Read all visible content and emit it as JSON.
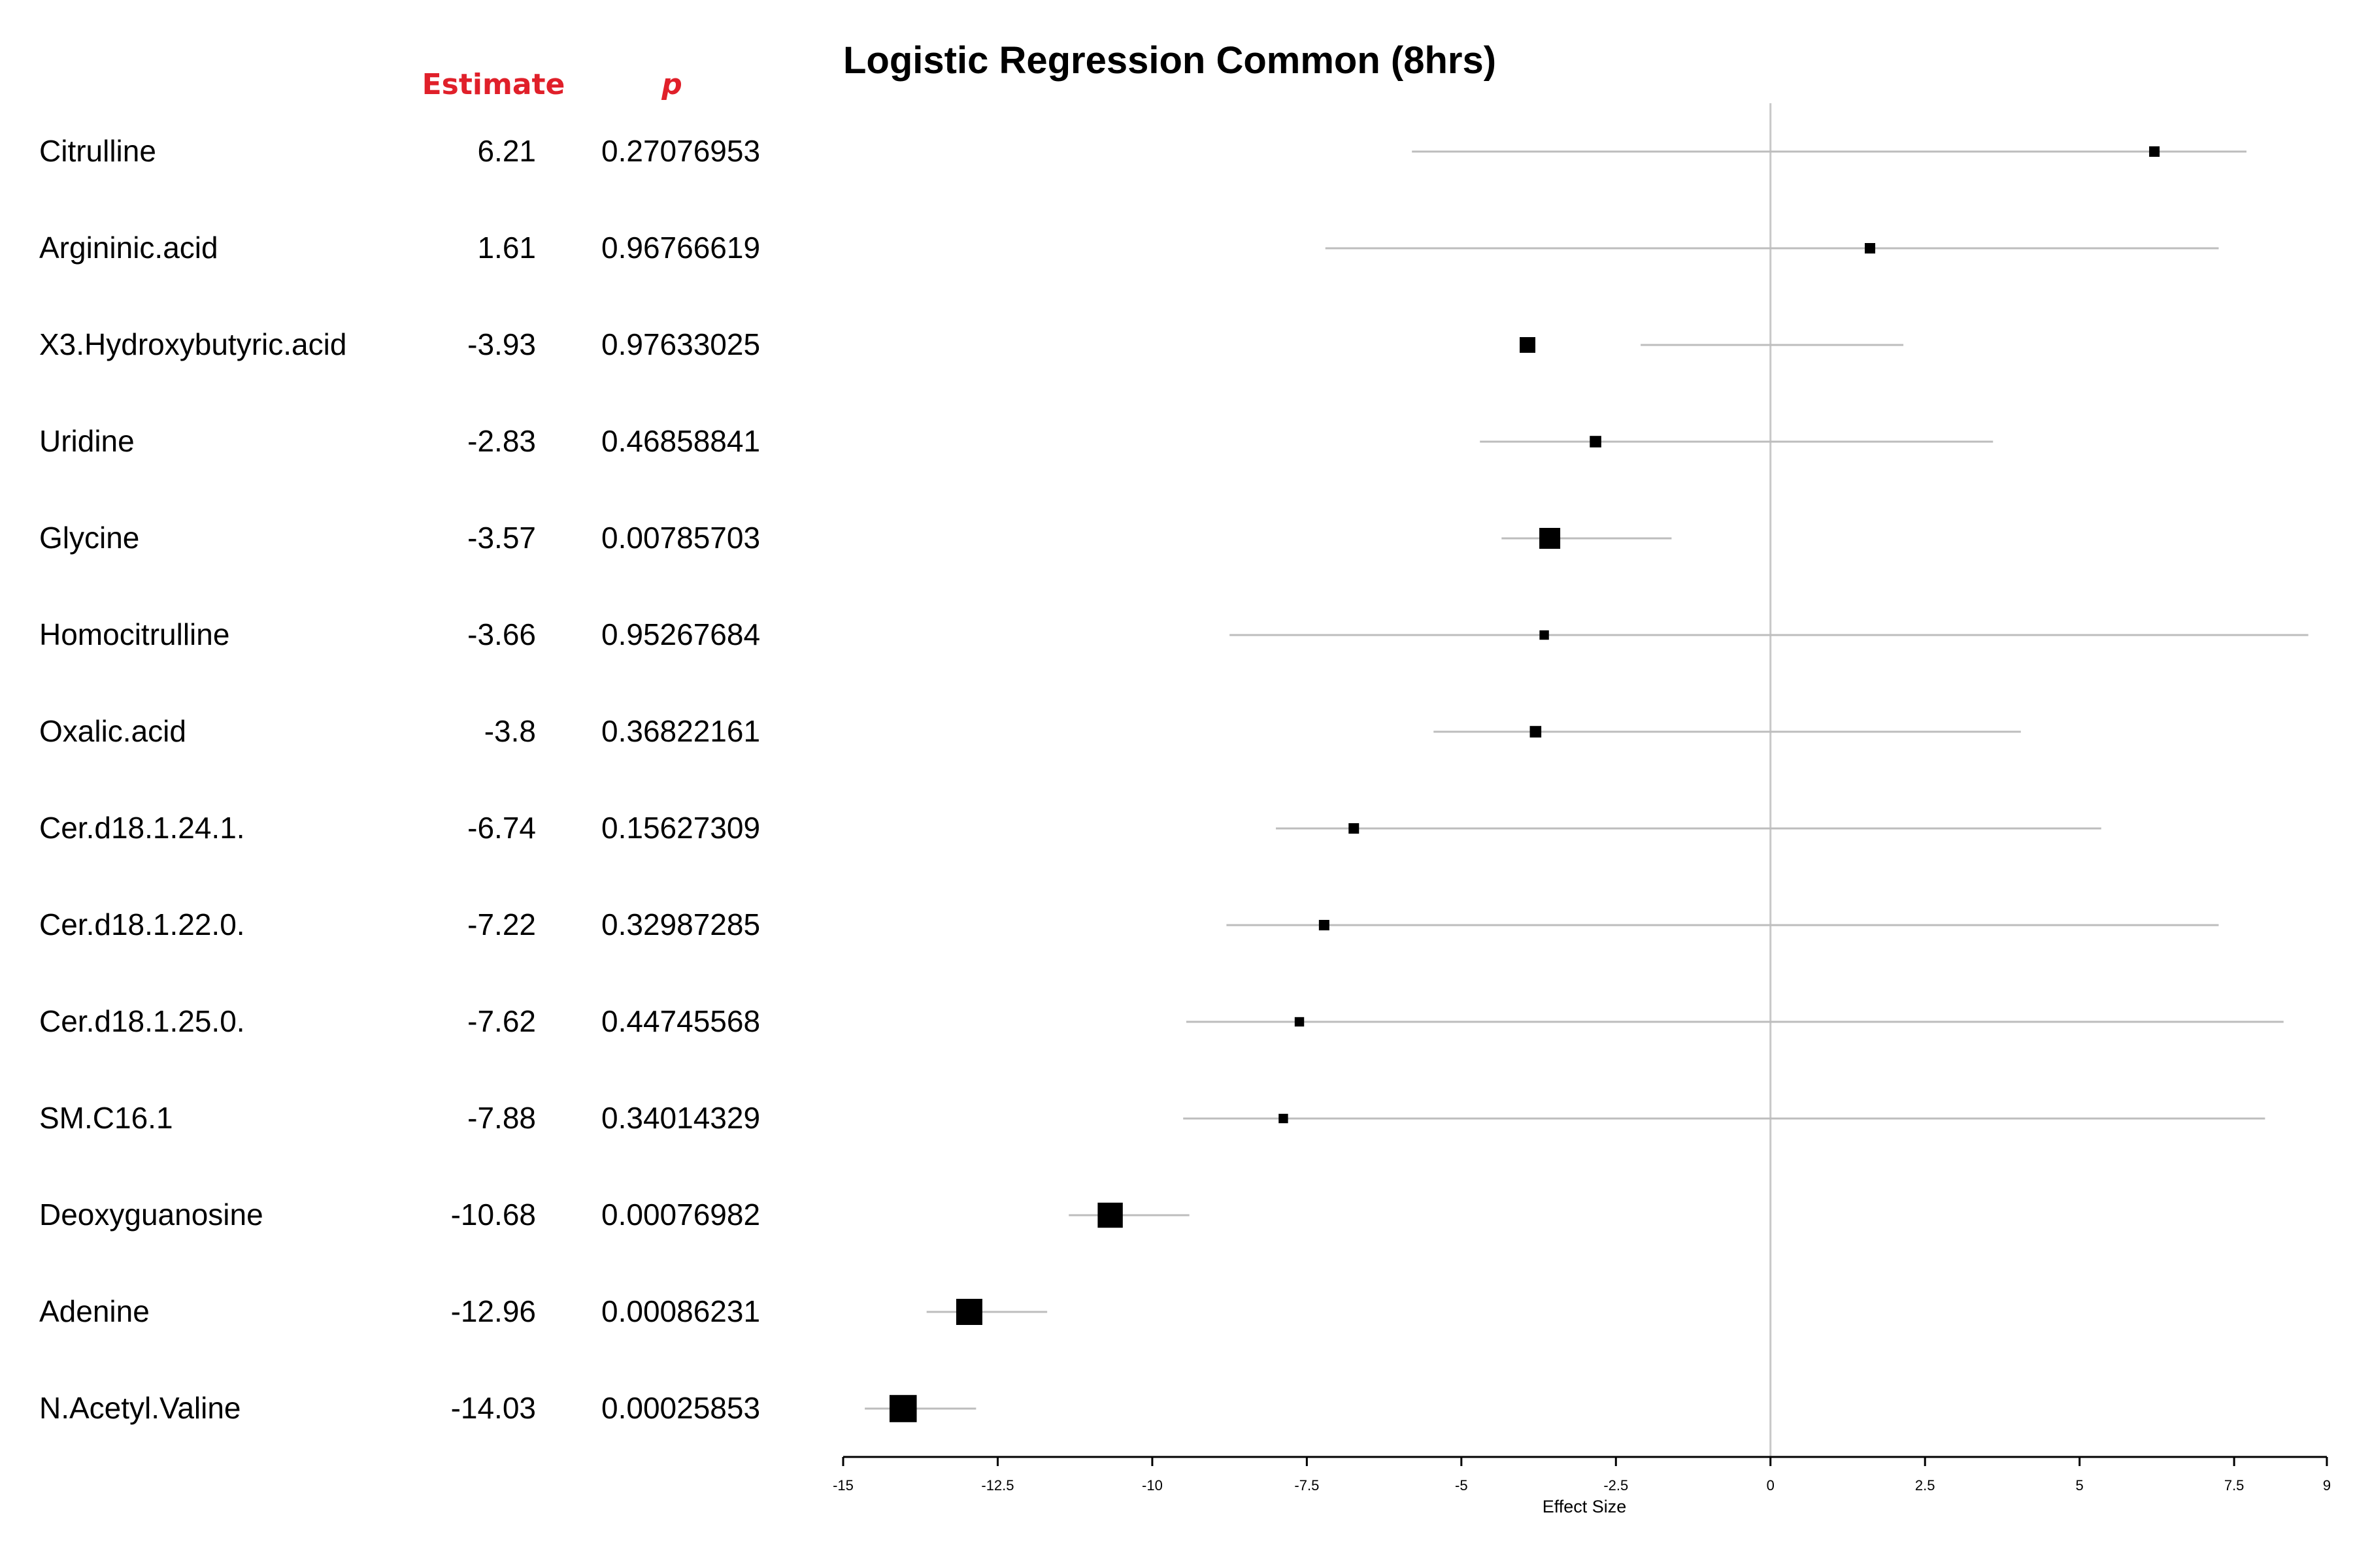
{
  "chart_data": {
    "type": "forest",
    "title": "Logistic Regression Common (8hrs)",
    "xlabel": "Effect Size",
    "xlim": [
      -15,
      9
    ],
    "reference_line": 0,
    "columns": {
      "estimate_header": "Estimate",
      "p_header": "p"
    },
    "x_ticks": [
      {
        "value": -15,
        "label": "-15"
      },
      {
        "value": -12.5,
        "label": "-12.5"
      },
      {
        "value": -10,
        "label": "-10"
      },
      {
        "value": -7.5,
        "label": "-7.5"
      },
      {
        "value": -5,
        "label": "-5"
      },
      {
        "value": -2.5,
        "label": "-2.5"
      },
      {
        "value": 0,
        "label": "0"
      },
      {
        "value": 2.5,
        "label": "2.5"
      },
      {
        "value": 5,
        "label": "5"
      },
      {
        "value": 7.5,
        "label": "7.5"
      },
      {
        "value": 9,
        "label": "9"
      }
    ],
    "rows": [
      {
        "name": "Citrulline",
        "estimate": 6.21,
        "estimate_label": "6.21",
        "p": "0.27076953",
        "ci_low": -5.8,
        "ci_high": 7.7,
        "weight": 1
      },
      {
        "name": "Argininic.acid",
        "estimate": 1.61,
        "estimate_label": "1.61",
        "p": "0.96766619",
        "ci_low": -7.2,
        "ci_high": 7.25,
        "weight": 1
      },
      {
        "name": "X3.Hydroxybutyric.acid",
        "estimate": -3.93,
        "estimate_label": "-3.93",
        "p": "0.97633025",
        "ci_low": -2.1,
        "ci_high": 2.15,
        "weight": 1.5
      },
      {
        "name": "Uridine",
        "estimate": -2.83,
        "estimate_label": "-2.83",
        "p": "0.46858841",
        "ci_low": -4.7,
        "ci_high": 3.6,
        "weight": 1.1
      },
      {
        "name": "Glycine",
        "estimate": -3.57,
        "estimate_label": "-3.57",
        "p": "0.00785703",
        "ci_low": -4.35,
        "ci_high": -1.6,
        "weight": 2
      },
      {
        "name": "Homocitrulline",
        "estimate": -3.66,
        "estimate_label": "-3.66",
        "p": "0.95267684",
        "ci_low": -8.75,
        "ci_high": 8.7,
        "weight": 0.9
      },
      {
        "name": "Oxalic.acid",
        "estimate": -3.8,
        "estimate_label": "-3.8",
        "p": "0.36822161",
        "ci_low": -5.45,
        "ci_high": 4.05,
        "weight": 1.1
      },
      {
        "name": "Cer.d18.1.24.1.",
        "estimate": -6.74,
        "estimate_label": "-6.74",
        "p": "0.15627309",
        "ci_low": -8.0,
        "ci_high": 5.35,
        "weight": 1
      },
      {
        "name": "Cer.d18.1.22.0.",
        "estimate": -7.22,
        "estimate_label": "-7.22",
        "p": "0.32987285",
        "ci_low": -8.8,
        "ci_high": 7.25,
        "weight": 1
      },
      {
        "name": "Cer.d18.1.25.0.",
        "estimate": -7.62,
        "estimate_label": "-7.62",
        "p": "0.44745568",
        "ci_low": -9.45,
        "ci_high": 8.3,
        "weight": 0.9
      },
      {
        "name": "SM.C16.1",
        "estimate": -7.88,
        "estimate_label": "-7.88",
        "p": "0.34014329",
        "ci_low": -9.5,
        "ci_high": 8.0,
        "weight": 0.9
      },
      {
        "name": "Deoxyguanosine",
        "estimate": -10.68,
        "estimate_label": "-10.68",
        "p": "0.00076982",
        "ci_low": -11.35,
        "ci_high": -9.4,
        "weight": 2.4
      },
      {
        "name": "Adenine",
        "estimate": -12.96,
        "estimate_label": "-12.96",
        "p": "0.00086231",
        "ci_low": -13.65,
        "ci_high": -11.7,
        "weight": 2.5
      },
      {
        "name": "N.Acetyl.Valine",
        "estimate": -14.03,
        "estimate_label": "-14.03",
        "p": "0.00025853",
        "ci_low": -14.65,
        "ci_high": -12.85,
        "weight": 2.6
      }
    ]
  }
}
